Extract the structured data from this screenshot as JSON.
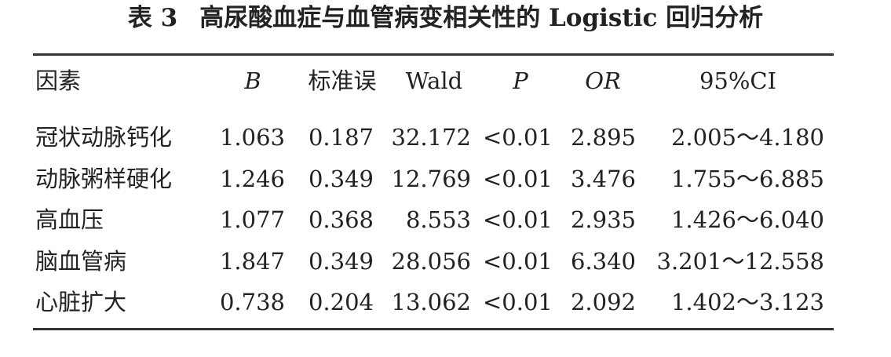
{
  "header": {
    "label": "表 3",
    "title": "高尿酸血症与血管病变相关性的 Logistic 回归分析"
  },
  "table": {
    "columns": [
      "因素",
      "B",
      "标准误",
      "Wald",
      "P",
      "OR",
      "95%CI"
    ],
    "rows": [
      [
        "冠状动脉钙化",
        "1.063",
        "0.187",
        "32.172",
        "<0.01",
        "2.895",
        "2.005～4.180"
      ],
      [
        "动脉粥样硬化",
        "1.246",
        "0.349",
        "12.769",
        "<0.01",
        "3.476",
        "1.755～6.885"
      ],
      [
        "高血压",
        "1.077",
        "0.368",
        "8.553",
        "<0.01",
        "2.935",
        "1.426～6.040"
      ],
      [
        "脑血管病",
        "1.847",
        "0.349",
        "28.056",
        "<0.01",
        "6.340",
        "3.201～12.558"
      ],
      [
        "心脏扩大",
        "0.738",
        "0.204",
        "13.062",
        "<0.01",
        "2.092",
        "1.402～3.123"
      ]
    ]
  }
}
